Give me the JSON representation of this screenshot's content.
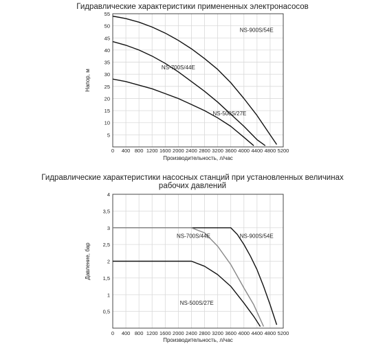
{
  "chart_data": [
    {
      "type": "line",
      "title": "Гидравлические характеристики примененных электронасосов",
      "xlabel": "Производительность, л/час",
      "ylabel": "Напор, м",
      "xlim": [
        0,
        5200
      ],
      "ylim": [
        0,
        55
      ],
      "x_ticks": [
        "0",
        "400",
        "800",
        "1200",
        "1600",
        "2000",
        "2400",
        "2800",
        "3200",
        "3600",
        "4000",
        "4400",
        "4800",
        "5200"
      ],
      "y_ticks": [
        "5",
        "10",
        "15",
        "20",
        "25",
        "30",
        "35",
        "40",
        "45",
        "50",
        "55"
      ],
      "grid": true,
      "series": [
        {
          "name": "NS-900S/54E",
          "color": "#111111",
          "x": [
            0,
            400,
            800,
            1200,
            1600,
            2000,
            2400,
            2800,
            3200,
            3600,
            4000,
            4400,
            4800,
            5000
          ],
          "y": [
            54,
            53,
            51.5,
            49.5,
            47,
            44,
            40.5,
            36.5,
            32,
            26.5,
            20,
            13,
            5,
            1
          ]
        },
        {
          "name": "NS-700S/44E",
          "color": "#111111",
          "x": [
            0,
            400,
            800,
            1200,
            1600,
            2000,
            2400,
            2800,
            3200,
            3600,
            4000,
            4400,
            4650
          ],
          "y": [
            43.5,
            42,
            40,
            37.5,
            34.5,
            31,
            27,
            23,
            18.5,
            13.5,
            8.5,
            3,
            0.5
          ]
        },
        {
          "name": "NS-500S/27E",
          "color": "#111111",
          "x": [
            0,
            400,
            800,
            1200,
            1600,
            2000,
            2400,
            2800,
            3200,
            3600,
            4000,
            4300
          ],
          "y": [
            28,
            27,
            25.5,
            24,
            22,
            20,
            17.5,
            15,
            12,
            8.5,
            4,
            0.5
          ]
        }
      ]
    },
    {
      "type": "line",
      "title": "Гидравлические характеристики насосных станций при установленных величинах рабочих давлений",
      "title_lines": [
        "Гидравлические характеристики насосных станций при установленных величинах",
        "рабочих давлений"
      ],
      "xlabel": "Производительность, л/час",
      "ylabel": "Давление, бар",
      "xlim": [
        0,
        5200
      ],
      "ylim": [
        0,
        4
      ],
      "x_ticks": [
        "0",
        "400",
        "800",
        "1200",
        "1600",
        "2000",
        "2400",
        "2800",
        "3200",
        "3600",
        "4000",
        "4400",
        "4800",
        "5200"
      ],
      "y_ticks": [
        "0,5",
        "1",
        "1,5",
        "2",
        "2,5",
        "3",
        "3,5",
        "4"
      ],
      "grid": true,
      "series": [
        {
          "name": "NS-900S/54E",
          "color": "#111111",
          "x": [
            0,
            3600,
            3800,
            4000,
            4200,
            4400,
            4600,
            4800,
            5000
          ],
          "y": [
            3,
            3,
            2.8,
            2.5,
            2.15,
            1.75,
            1.25,
            0.7,
            0.1
          ]
        },
        {
          "name": "NS-700S/44E",
          "color": "#888888",
          "x": [
            0,
            2400,
            2800,
            3200,
            3600,
            4000,
            4300,
            4600
          ],
          "y": [
            3,
            3,
            2.85,
            2.45,
            1.9,
            1.2,
            0.7,
            0.05
          ]
        },
        {
          "name": "NS-500S/27E",
          "color": "#111111",
          "x": [
            0,
            2400,
            2800,
            3200,
            3600,
            4000,
            4300,
            4500
          ],
          "y": [
            2,
            2,
            1.85,
            1.6,
            1.25,
            0.75,
            0.35,
            0.05
          ]
        }
      ]
    }
  ]
}
